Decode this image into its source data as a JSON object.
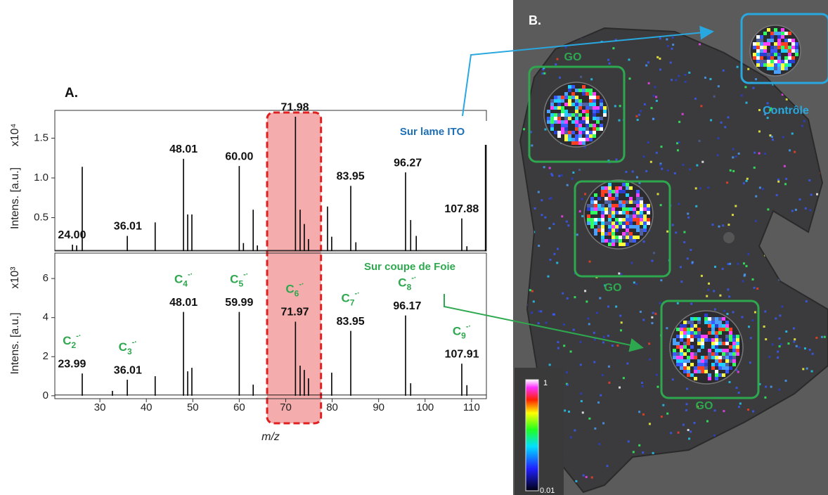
{
  "chart_data": [
    {
      "type": "stem",
      "panel_label": "A.",
      "annotation": "Sur lame ITO",
      "annotation_color": "#1f6fb5",
      "y_label": "Intens. [a.u.]",
      "y_scale_label": "x10⁴",
      "color": "#000000",
      "x": [
        24.1,
        25.0,
        26.2,
        35.9,
        41.9,
        48.0,
        48.9,
        49.8,
        60.0,
        60.9,
        63.0,
        63.9,
        72.1,
        73.1,
        74.0,
        74.9,
        79.0,
        79.9,
        84.0,
        85.1,
        95.8,
        96.9,
        98.1,
        107.9,
        109.0,
        113.0
      ],
      "values": [
        0.16,
        0.15,
        1.14,
        0.27,
        0.44,
        1.24,
        0.54,
        0.54,
        1.15,
        0.18,
        0.6,
        0.15,
        1.77,
        0.6,
        0.42,
        0.23,
        0.64,
        0.26,
        0.9,
        0.19,
        1.07,
        0.47,
        0.27,
        0.49,
        0.14,
        1.64
      ],
      "xlim": [
        20.3,
        113.2
      ],
      "ylim": [
        0.08,
        1.85
      ],
      "yticks": [
        0.5,
        {
          "value": 1,
          "label": "1.0"
        },
        1.5
      ],
      "highlight_xrange": [
        66,
        77.6
      ],
      "highlight_color": "#f4a3a3",
      "highlight_edge_color": "#e02020",
      "peak_labels": [
        {
          "value": 24,
          "label": "24.00"
        },
        36.01,
        48.01,
        {
          "value": 60,
          "label": "60.00"
        },
        71.98,
        83.95,
        96.27,
        107.88
      ]
    },
    {
      "type": "stem",
      "annotation": "Sur coupe de Foie",
      "annotation_color": "#2ea84f",
      "y_label": "Intens. [a.u.]",
      "y_scale_label": "x10³",
      "x_label": "m/z",
      "color": "#000000",
      "x": [
        26.2,
        32.7,
        35.9,
        41.9,
        48.0,
        48.9,
        49.8,
        60.0,
        63.0,
        72.1,
        73.1,
        74.0,
        74.9,
        79.9,
        84.0,
        95.8,
        96.9,
        107.9,
        109.0
      ],
      "values": [
        1.14,
        0.25,
        0.82,
        1.0,
        4.29,
        1.25,
        1.43,
        4.29,
        0.57,
        3.79,
        1.54,
        1.32,
        0.89,
        1.18,
        3.32,
        4.11,
        0.64,
        1.64,
        0.54
      ],
      "xlim": [
        20.3,
        113.2
      ],
      "ylim": [
        -0.15,
        7.3
      ],
      "xticks": [
        30,
        40,
        50,
        60,
        70,
        80,
        90,
        100,
        110
      ],
      "yticks": [
        0,
        2,
        4,
        6
      ],
      "peak_labels": [
        {
          "value": 23.99,
          "ion": {
            "base": "C",
            "sub": "2",
            "sup": "-·"
          }
        },
        {
          "value": 36.01,
          "ion": {
            "base": "C",
            "sub": "3",
            "sup": "-·"
          }
        },
        {
          "value": 48.01,
          "ion": {
            "base": "C",
            "sub": "4",
            "sup": "-·"
          }
        },
        {
          "value": 59.99,
          "ion": {
            "base": "C",
            "sub": "5",
            "sup": "-·"
          }
        },
        {
          "value": 71.97,
          "ion": {
            "base": "C",
            "sub": "6",
            "sup": "-·"
          }
        },
        {
          "value": 83.95,
          "ion": {
            "base": "C",
            "sub": "7",
            "sup": "-·"
          }
        },
        {
          "value": 96.17,
          "ion": {
            "base": "C",
            "sub": "8",
            "sup": "-·"
          }
        },
        {
          "value": 107.91,
          "ion": {
            "base": "C",
            "sub": "9",
            "sup": "-·"
          }
        }
      ]
    }
  ],
  "image_panel": {
    "label": "B.",
    "spot_labels": [
      "GO",
      "GO",
      "GO"
    ],
    "control_label": "Contrôle",
    "colorbar_labels": [
      "1",
      "0.01"
    ]
  }
}
